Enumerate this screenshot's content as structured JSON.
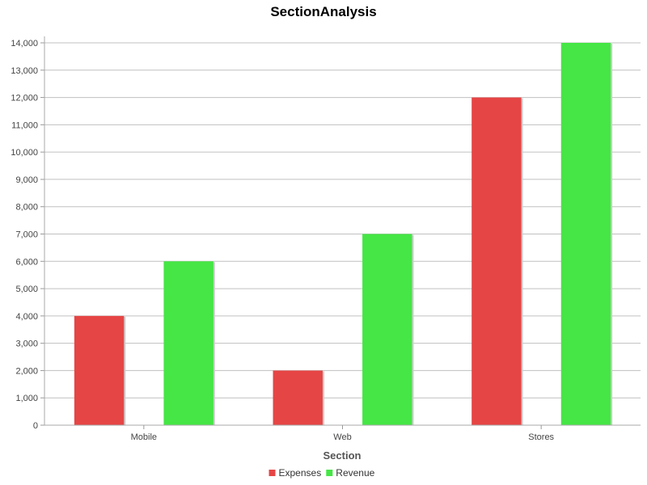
{
  "chart_data": {
    "type": "bar",
    "title": "SectionAnalysis",
    "xlabel": "Section",
    "ylabel": "",
    "categories": [
      "Mobile",
      "Web",
      "Stores"
    ],
    "series": [
      {
        "name": "Expenses",
        "values": [
          4000,
          2000,
          12000
        ],
        "color": "#e64545"
      },
      {
        "name": "Revenue",
        "values": [
          6000,
          7000,
          14000
        ],
        "color": "#45e645"
      }
    ],
    "ylim": [
      0,
      14000
    ],
    "yticks": [
      0,
      1000,
      2000,
      3000,
      4000,
      5000,
      6000,
      7000,
      8000,
      9000,
      10000,
      11000,
      12000,
      13000,
      14000
    ],
    "grid": true,
    "legend_position": "bottom-center"
  }
}
